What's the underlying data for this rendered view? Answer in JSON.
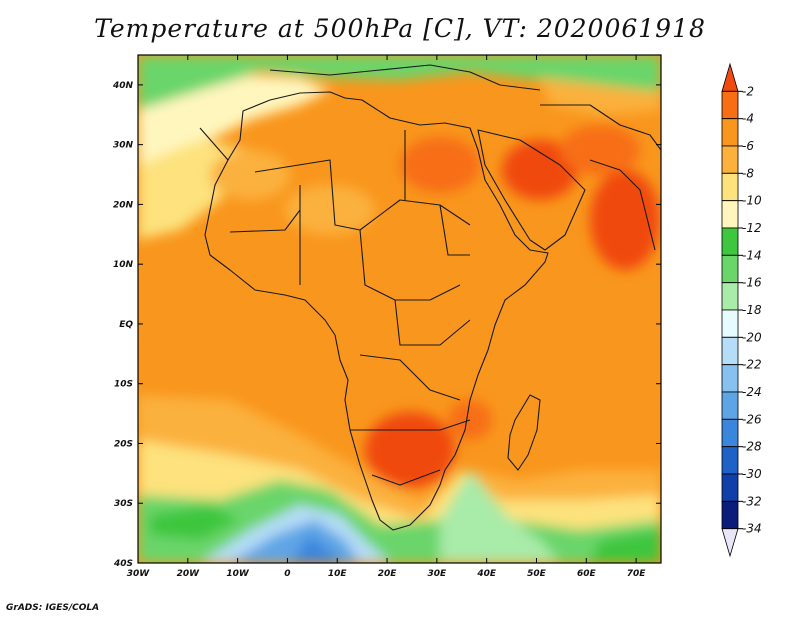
{
  "title": "Temperature at 500hPa [C], VT: 2020061918",
  "credit": "GrADS: IGES/COLA",
  "map": {
    "lon_range": [
      -30,
      75
    ],
    "lat_range": [
      -40,
      45
    ],
    "lon_ticks": [
      {
        "lon": -30,
        "label": "30W"
      },
      {
        "lon": -20,
        "label": "20W"
      },
      {
        "lon": -10,
        "label": "10W"
      },
      {
        "lon": 0,
        "label": "0"
      },
      {
        "lon": 10,
        "label": "10E"
      },
      {
        "lon": 20,
        "label": "20E"
      },
      {
        "lon": 30,
        "label": "30E"
      },
      {
        "lon": 40,
        "label": "40E"
      },
      {
        "lon": 50,
        "label": "50E"
      },
      {
        "lon": 60,
        "label": "60E"
      },
      {
        "lon": 70,
        "label": "70E"
      }
    ],
    "lat_ticks": [
      {
        "lat": 40,
        "label": "40N"
      },
      {
        "lat": 30,
        "label": "30N"
      },
      {
        "lat": 20,
        "label": "20N"
      },
      {
        "lat": 10,
        "label": "10N"
      },
      {
        "lat": 0,
        "label": "EQ"
      },
      {
        "lat": -10,
        "label": "10S"
      },
      {
        "lat": -20,
        "label": "20S"
      },
      {
        "lat": -30,
        "label": "30S"
      },
      {
        "lat": -40,
        "label": "40S"
      }
    ]
  },
  "colorbar": {
    "levels": [
      "-2",
      "-4",
      "-6",
      "-8",
      "-10",
      "-12",
      "-14",
      "-16",
      "-18",
      "-20",
      "-22",
      "-24",
      "-26",
      "-28",
      "-30",
      "-32",
      "-34"
    ],
    "colors": [
      "#f04a10",
      "#f76e14",
      "#f9961d",
      "#fbb13c",
      "#fde27d",
      "#fff6bd",
      "#3ec63e",
      "#6ad56a",
      "#a9eba9",
      "#e6fbfd",
      "#b6ddf7",
      "#86c1ef",
      "#5ea5e6",
      "#3b86dd",
      "#1e62c8",
      "#0f3fa8",
      "#0b1c7a",
      "#e9e7f7"
    ]
  }
}
